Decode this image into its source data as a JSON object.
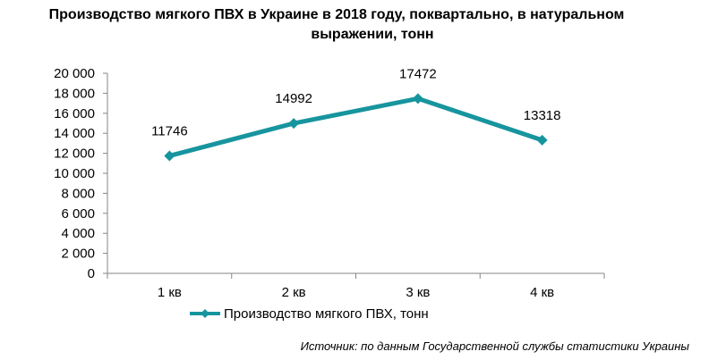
{
  "title": {
    "line1": "Производство мягкого ПВХ в Украине в 2018 году, поквартально, в натуральном",
    "line2": "выражении, тонн"
  },
  "source": "Источник: по данным Государственной службы статистики Украины",
  "colors": {
    "series": "#17959E",
    "axis": "#868686"
  },
  "chart_data": {
    "type": "line",
    "categories": [
      "1 кв",
      "2 кв",
      "3 кв",
      "4 кв"
    ],
    "series": [
      {
        "name": "Производство мягкого ПВХ, тонн",
        "values": [
          11746,
          14992,
          17472,
          13318
        ]
      }
    ],
    "data_labels": [
      "11746",
      "14992",
      "17472",
      "13318"
    ],
    "yticks": [
      "0",
      "2 000",
      "4 000",
      "6 000",
      "8 000",
      "10 000",
      "12 000",
      "14 000",
      "16 000",
      "18 000",
      "20 000"
    ],
    "ylim": [
      0,
      20000
    ],
    "grid": false,
    "legend": "bottom"
  }
}
